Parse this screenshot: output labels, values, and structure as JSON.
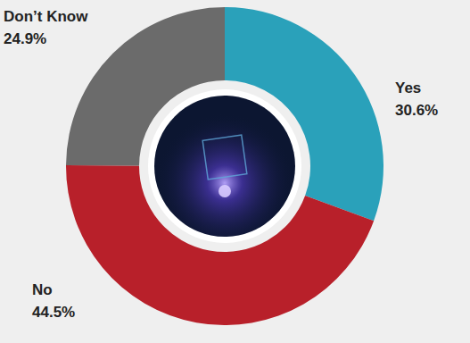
{
  "chart_data": {
    "type": "pie",
    "categories": [
      "Yes",
      "No",
      "Don’t Know"
    ],
    "values": [
      30.6,
      44.5,
      24.9
    ],
    "value_labels": [
      "30.6%",
      "44.5%",
      "24.9%"
    ],
    "colors": [
      "#2aa1ba",
      "#b8202a",
      "#6b6b6b"
    ],
    "data_labels": true
  }
}
